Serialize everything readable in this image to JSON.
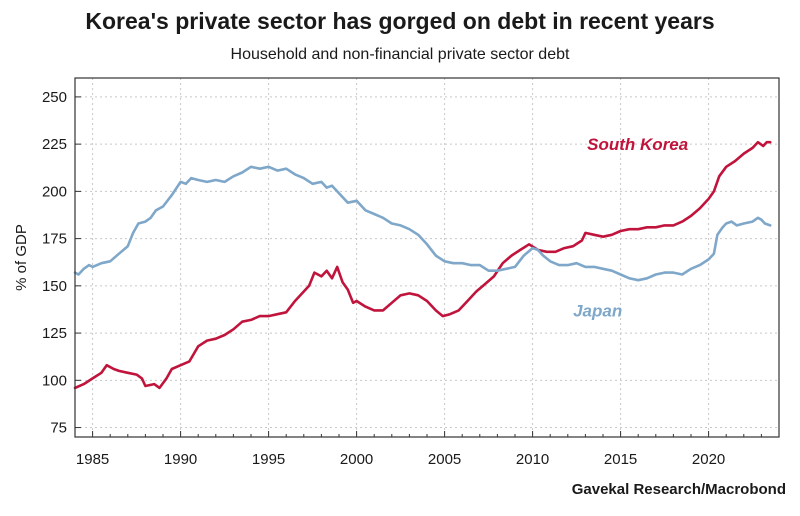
{
  "header": {
    "title": "Korea's private sector has gorged on debt in recent years",
    "subtitle": "Household and non-financial private sector debt"
  },
  "footer": {
    "source": "Gavekal Research/Macrobond"
  },
  "colors": {
    "korea": "#c0143c",
    "japan": "#7fa7c9",
    "grid": "#c8c8c8",
    "axis": "#333333"
  },
  "chart_data": {
    "type": "line",
    "title": "Korea's private sector has gorged on debt in recent years",
    "subtitle": "Household and non-financial private sector debt",
    "xlabel": "",
    "ylabel": "% of GDP",
    "xlim": [
      1984,
      2024
    ],
    "ylim": [
      70,
      260
    ],
    "x_ticks": [
      1985,
      1990,
      1995,
      2000,
      2005,
      2010,
      2015,
      2020
    ],
    "y_ticks": [
      75,
      100,
      125,
      150,
      175,
      200,
      225,
      250
    ],
    "grid": true,
    "legend": "inline labels",
    "series": [
      {
        "name": "South Korea",
        "color": "#c0143c",
        "points": [
          [
            1984.0,
            96
          ],
          [
            1984.5,
            98
          ],
          [
            1985.0,
            101
          ],
          [
            1985.5,
            104
          ],
          [
            1985.8,
            108
          ],
          [
            1986.2,
            106
          ],
          [
            1986.5,
            105
          ],
          [
            1987.0,
            104
          ],
          [
            1987.5,
            103
          ],
          [
            1987.8,
            101
          ],
          [
            1988.0,
            97
          ],
          [
            1988.5,
            98
          ],
          [
            1988.8,
            96
          ],
          [
            1989.2,
            101
          ],
          [
            1989.5,
            106
          ],
          [
            1990.0,
            108
          ],
          [
            1990.5,
            110
          ],
          [
            1991.0,
            118
          ],
          [
            1991.5,
            121
          ],
          [
            1992.0,
            122
          ],
          [
            1992.5,
            124
          ],
          [
            1993.0,
            127
          ],
          [
            1993.5,
            131
          ],
          [
            1994.0,
            132
          ],
          [
            1994.5,
            134
          ],
          [
            1995.0,
            134
          ],
          [
            1995.5,
            135
          ],
          [
            1996.0,
            136
          ],
          [
            1996.5,
            142
          ],
          [
            1997.0,
            147
          ],
          [
            1997.3,
            150
          ],
          [
            1997.6,
            157
          ],
          [
            1998.0,
            155
          ],
          [
            1998.3,
            158
          ],
          [
            1998.6,
            154
          ],
          [
            1998.9,
            160
          ],
          [
            1999.2,
            152
          ],
          [
            1999.5,
            148
          ],
          [
            1999.8,
            141
          ],
          [
            2000.0,
            142
          ],
          [
            2000.5,
            139
          ],
          [
            2001.0,
            137
          ],
          [
            2001.5,
            137
          ],
          [
            2002.0,
            141
          ],
          [
            2002.5,
            145
          ],
          [
            2003.0,
            146
          ],
          [
            2003.5,
            145
          ],
          [
            2004.0,
            142
          ],
          [
            2004.5,
            137
          ],
          [
            2004.9,
            134
          ],
          [
            2005.3,
            135
          ],
          [
            2005.8,
            137
          ],
          [
            2006.3,
            142
          ],
          [
            2006.8,
            147
          ],
          [
            2007.3,
            151
          ],
          [
            2007.8,
            155
          ],
          [
            2008.3,
            162
          ],
          [
            2008.8,
            166
          ],
          [
            2009.3,
            169
          ],
          [
            2009.8,
            172
          ],
          [
            2010.3,
            169
          ],
          [
            2010.8,
            168
          ],
          [
            2011.3,
            168
          ],
          [
            2011.8,
            170
          ],
          [
            2012.3,
            171
          ],
          [
            2012.8,
            174
          ],
          [
            2013.0,
            178
          ],
          [
            2013.5,
            177
          ],
          [
            2014.0,
            176
          ],
          [
            2014.5,
            177
          ],
          [
            2015.0,
            179
          ],
          [
            2015.5,
            180
          ],
          [
            2016.0,
            180
          ],
          [
            2016.5,
            181
          ],
          [
            2017.0,
            181
          ],
          [
            2017.5,
            182
          ],
          [
            2018.0,
            182
          ],
          [
            2018.5,
            184
          ],
          [
            2019.0,
            187
          ],
          [
            2019.5,
            191
          ],
          [
            2020.0,
            196
          ],
          [
            2020.3,
            200
          ],
          [
            2020.6,
            208
          ],
          [
            2021.0,
            213
          ],
          [
            2021.5,
            216
          ],
          [
            2022.0,
            220
          ],
          [
            2022.5,
            223
          ],
          [
            2022.8,
            226
          ],
          [
            2023.1,
            224
          ],
          [
            2023.3,
            226
          ],
          [
            2023.5,
            226
          ]
        ]
      },
      {
        "name": "Japan",
        "color": "#7fa7c9",
        "points": [
          [
            1984.0,
            157
          ],
          [
            1984.2,
            156
          ],
          [
            1984.5,
            159
          ],
          [
            1984.8,
            161
          ],
          [
            1985.0,
            160
          ],
          [
            1985.5,
            162
          ],
          [
            1986.0,
            163
          ],
          [
            1986.5,
            167
          ],
          [
            1987.0,
            171
          ],
          [
            1987.3,
            178
          ],
          [
            1987.6,
            183
          ],
          [
            1988.0,
            184
          ],
          [
            1988.3,
            186
          ],
          [
            1988.6,
            190
          ],
          [
            1989.0,
            192
          ],
          [
            1989.5,
            198
          ],
          [
            1990.0,
            205
          ],
          [
            1990.3,
            204
          ],
          [
            1990.6,
            207
          ],
          [
            1991.0,
            206
          ],
          [
            1991.5,
            205
          ],
          [
            1992.0,
            206
          ],
          [
            1992.5,
            205
          ],
          [
            1993.0,
            208
          ],
          [
            1993.5,
            210
          ],
          [
            1994.0,
            213
          ],
          [
            1994.5,
            212
          ],
          [
            1995.0,
            213
          ],
          [
            1995.5,
            211
          ],
          [
            1996.0,
            212
          ],
          [
            1996.5,
            209
          ],
          [
            1997.0,
            207
          ],
          [
            1997.5,
            204
          ],
          [
            1998.0,
            205
          ],
          [
            1998.3,
            202
          ],
          [
            1998.6,
            203
          ],
          [
            1999.0,
            199
          ],
          [
            1999.5,
            194
          ],
          [
            2000.0,
            195
          ],
          [
            2000.5,
            190
          ],
          [
            2001.0,
            188
          ],
          [
            2001.5,
            186
          ],
          [
            2002.0,
            183
          ],
          [
            2002.5,
            182
          ],
          [
            2003.0,
            180
          ],
          [
            2003.5,
            177
          ],
          [
            2004.0,
            172
          ],
          [
            2004.5,
            166
          ],
          [
            2005.0,
            163
          ],
          [
            2005.5,
            162
          ],
          [
            2006.0,
            162
          ],
          [
            2006.5,
            161
          ],
          [
            2007.0,
            161
          ],
          [
            2007.5,
            158
          ],
          [
            2008.0,
            158
          ],
          [
            2008.5,
            159
          ],
          [
            2009.0,
            160
          ],
          [
            2009.5,
            166
          ],
          [
            2010.0,
            170
          ],
          [
            2010.3,
            169
          ],
          [
            2010.6,
            166
          ],
          [
            2011.0,
            163
          ],
          [
            2011.5,
            161
          ],
          [
            2012.0,
            161
          ],
          [
            2012.5,
            162
          ],
          [
            2013.0,
            160
          ],
          [
            2013.5,
            160
          ],
          [
            2014.0,
            159
          ],
          [
            2014.5,
            158
          ],
          [
            2015.0,
            156
          ],
          [
            2015.5,
            154
          ],
          [
            2016.0,
            153
          ],
          [
            2016.5,
            154
          ],
          [
            2017.0,
            156
          ],
          [
            2017.5,
            157
          ],
          [
            2018.0,
            157
          ],
          [
            2018.5,
            156
          ],
          [
            2019.0,
            159
          ],
          [
            2019.5,
            161
          ],
          [
            2020.0,
            164
          ],
          [
            2020.3,
            167
          ],
          [
            2020.5,
            177
          ],
          [
            2020.8,
            181
          ],
          [
            2021.0,
            183
          ],
          [
            2021.3,
            184
          ],
          [
            2021.6,
            182
          ],
          [
            2022.0,
            183
          ],
          [
            2022.5,
            184
          ],
          [
            2022.8,
            186
          ],
          [
            2023.0,
            185
          ],
          [
            2023.2,
            183
          ],
          [
            2023.5,
            182
          ]
        ]
      }
    ],
    "annotations": [
      {
        "text": "South Korea",
        "series": "South Korea",
        "x": 2013.1,
        "y": 225
      },
      {
        "text": "Japan",
        "series": "Japan",
        "x": 2012.3,
        "y": 137
      }
    ]
  }
}
